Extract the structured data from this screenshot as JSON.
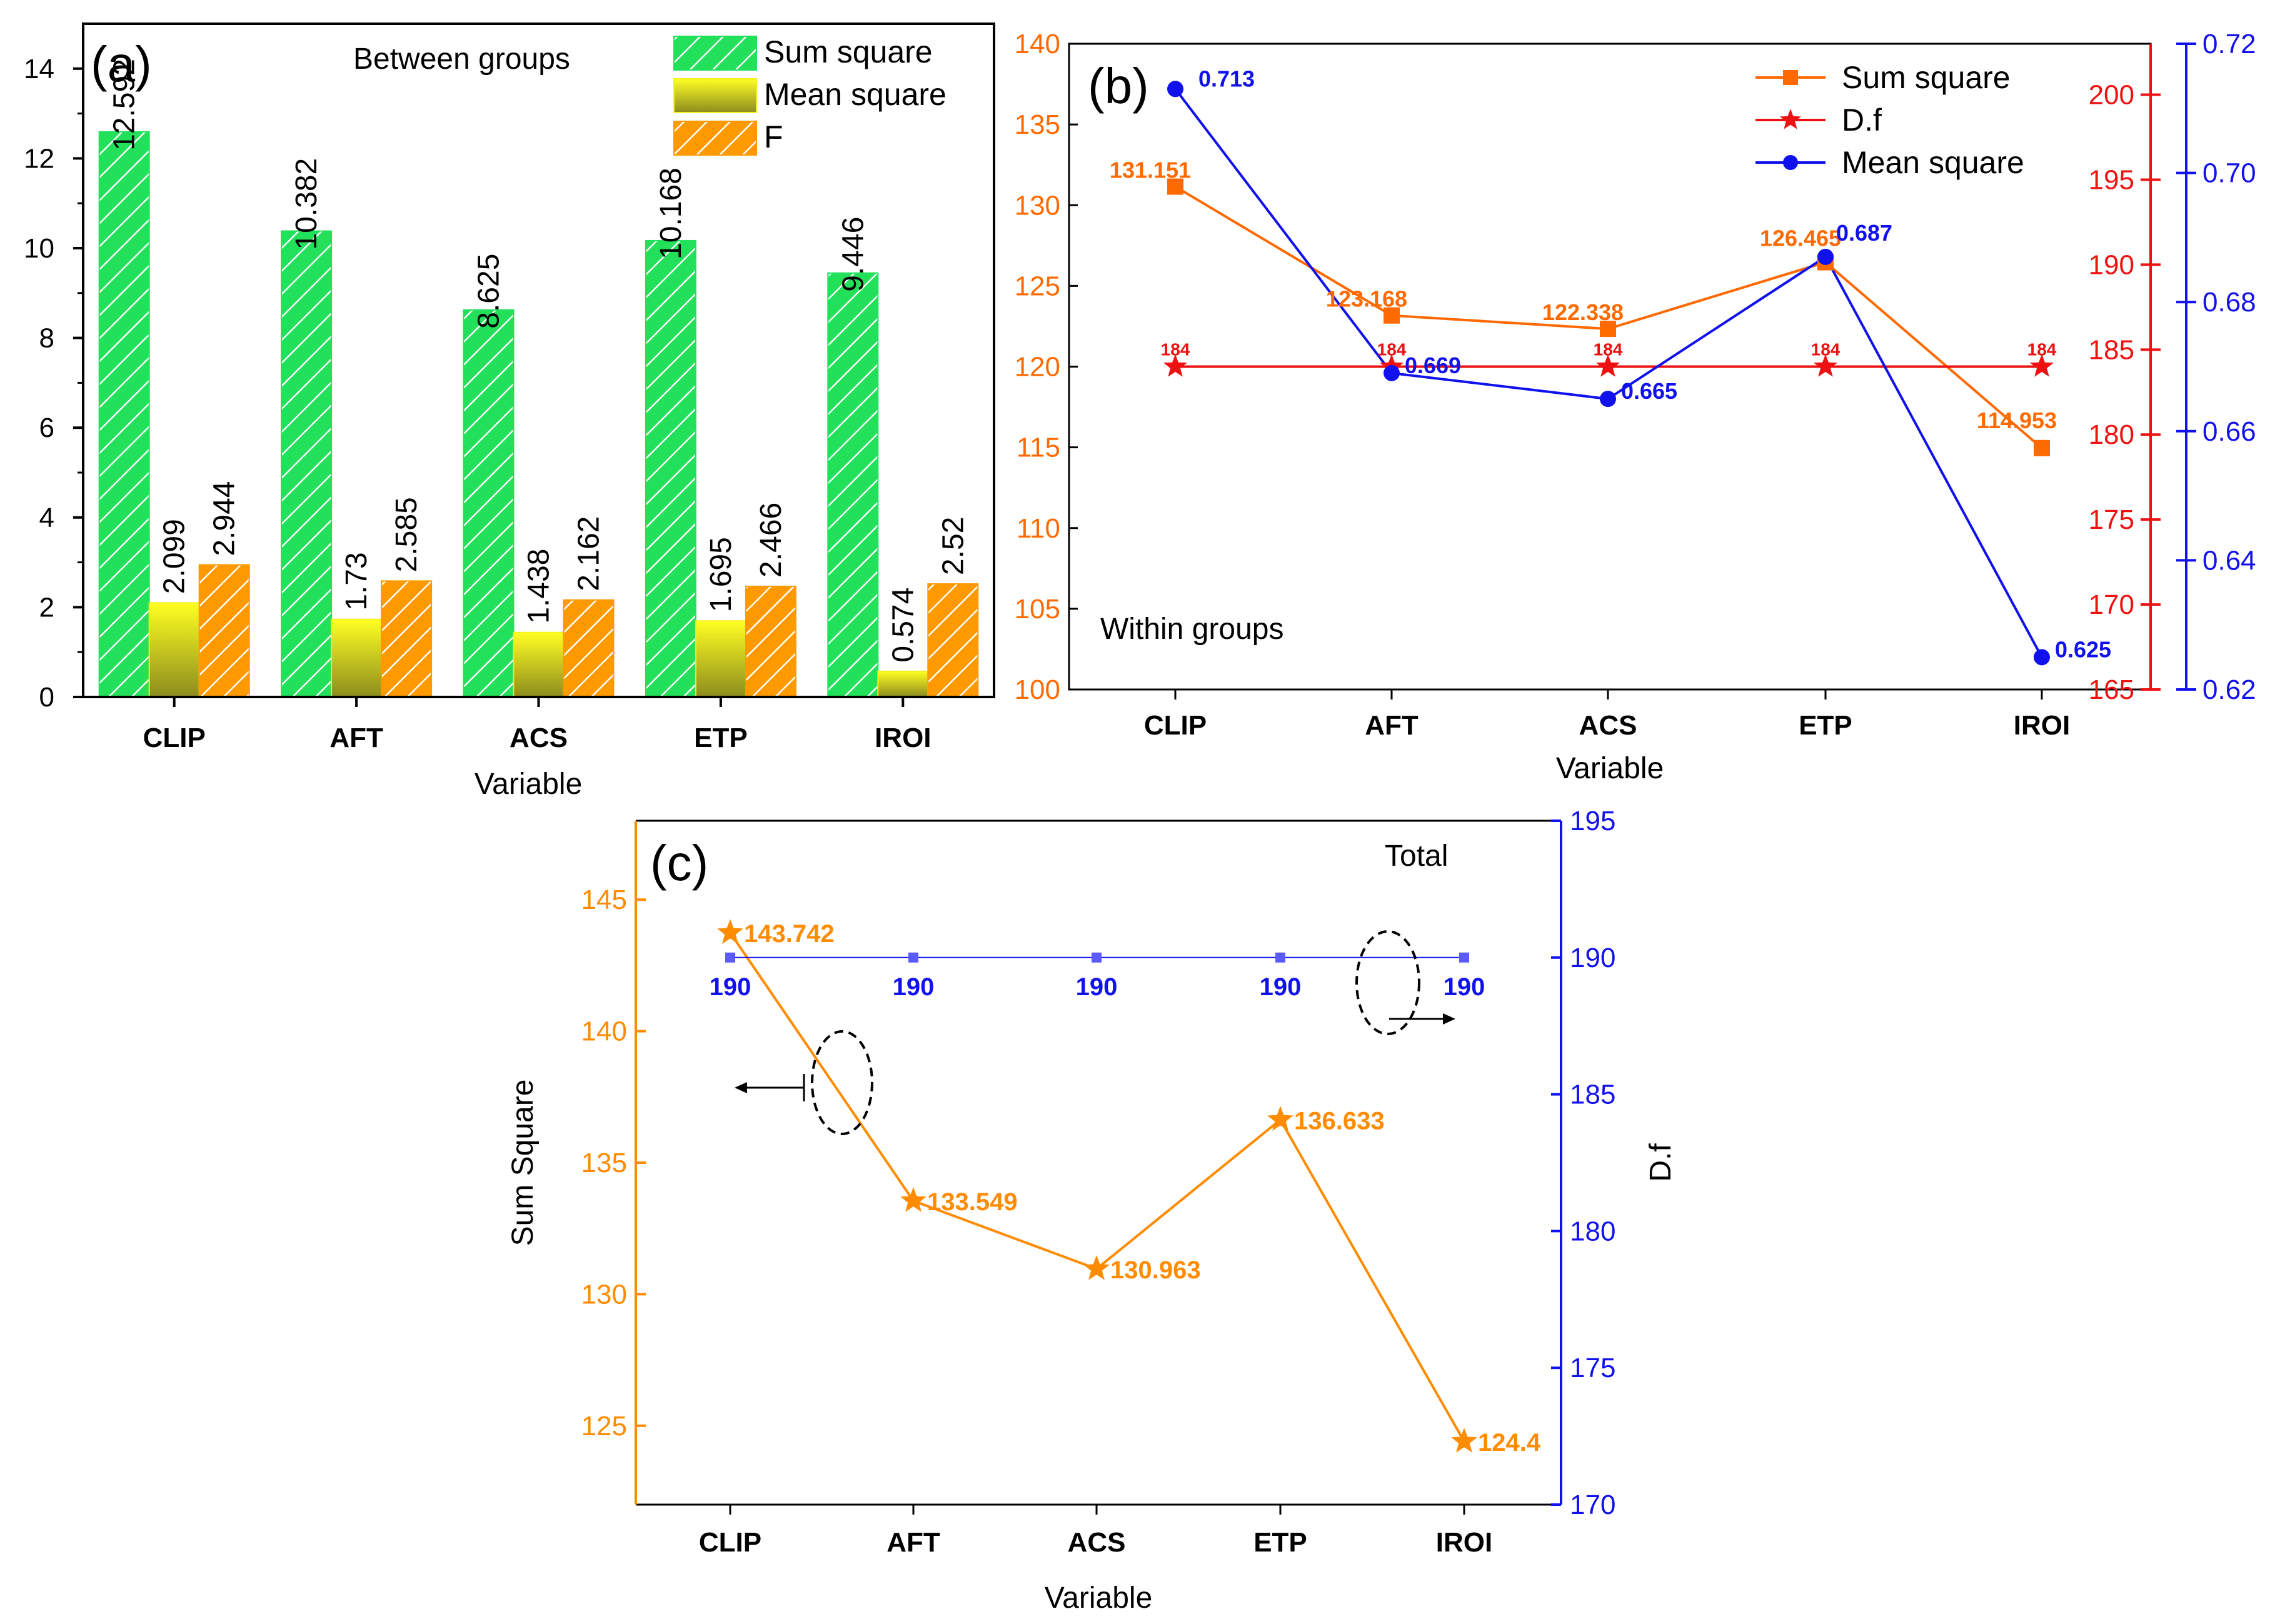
{
  "chart_data": [
    {
      "panel": "(a)",
      "type": "bar",
      "annotation": "Between groups",
      "xlabel": "Variable",
      "ylabel": "",
      "ylim": [
        0,
        15
      ],
      "yticks": [
        0,
        2,
        4,
        6,
        8,
        10,
        12,
        14
      ],
      "categories": [
        "CLIP",
        "AFT",
        "ACS",
        "ETP",
        "IROI"
      ],
      "legend_position": "top-right",
      "series": [
        {
          "name": "Sum square",
          "values": [
            12.592,
            10.382,
            8.625,
            10.168,
            9.446
          ],
          "labels": [
            "12.592",
            "10.382",
            "8.625",
            "10.168",
            "9.446"
          ],
          "color": "#22e05a"
        },
        {
          "name": "Mean square",
          "values": [
            2.099,
            1.73,
            1.438,
            1.695,
            0.574
          ],
          "labels": [
            "2.099",
            "1.73",
            "1.438",
            "1.695",
            "0.574"
          ],
          "color": "#f2f222"
        },
        {
          "name": "F",
          "values": [
            2.944,
            2.585,
            2.162,
            2.466,
            2.52
          ],
          "labels": [
            "2.944",
            "2.585",
            "2.162",
            "2.466",
            "2.52"
          ],
          "color": "#ff9900"
        }
      ]
    },
    {
      "panel": "(b)",
      "type": "line",
      "annotation": "Within groups",
      "xlabel": "Variable",
      "categories": [
        "CLIP",
        "AFT",
        "ACS",
        "ETP",
        "IROI"
      ],
      "legend_position": "top-right",
      "axes": {
        "left": {
          "ylim": [
            100,
            140
          ],
          "ticks": [
            100,
            105,
            110,
            115,
            120,
            125,
            130,
            135,
            140
          ],
          "color": "#ff6a00"
        },
        "right1": {
          "ylim": [
            165,
            203
          ],
          "ticks": [
            165,
            170,
            175,
            180,
            185,
            190,
            195,
            200
          ],
          "color": "#ee1111"
        },
        "right2": {
          "ylim": [
            0.62,
            0.72
          ],
          "ticks": [
            "0.62",
            "0.64",
            "0.66",
            "0.68",
            "0.70",
            "0.72"
          ],
          "color": "#1111ee"
        }
      },
      "series": [
        {
          "name": "Sum square",
          "axis": "left",
          "marker": "square",
          "color": "#ff6a00",
          "values": [
            131.151,
            123.168,
            122.338,
            126.465,
            114.953
          ],
          "labels": [
            "131.151",
            "123.168",
            "122.338",
            "126.465",
            "114.953"
          ]
        },
        {
          "name": "D.f",
          "axis": "right1",
          "marker": "star",
          "color": "#ee1111",
          "values": [
            184,
            184,
            184,
            184,
            184
          ],
          "labels": [
            "184",
            "184",
            "184",
            "184",
            "184"
          ]
        },
        {
          "name": "Mean square",
          "axis": "right2",
          "marker": "circle",
          "color": "#1111ee",
          "values": [
            0.713,
            0.669,
            0.665,
            0.687,
            0.625
          ],
          "labels": [
            "0.713",
            "0.669",
            "0.665",
            "0.687",
            "0.625"
          ]
        }
      ]
    },
    {
      "panel": "(c)",
      "type": "line",
      "annotation": "Total",
      "xlabel": "Variable",
      "categories": [
        "CLIP",
        "AFT",
        "ACS",
        "ETP",
        "IROI"
      ],
      "axes": {
        "left": {
          "label": "Sum Square",
          "ylim": [
            122,
            148
          ],
          "ticks": [
            125,
            130,
            135,
            140,
            145
          ],
          "color": "#ff8c00"
        },
        "right": {
          "label": "D.f",
          "ylim": [
            170,
            195
          ],
          "ticks": [
            170,
            175,
            180,
            185,
            190,
            195
          ],
          "color": "#1111ee"
        }
      },
      "series": [
        {
          "name": "Sum Square",
          "axis": "left",
          "marker": "star",
          "color": "#ff8c00",
          "values": [
            143.742,
            133.549,
            130.963,
            136.633,
            124.4
          ],
          "labels": [
            "143.742",
            "133.549",
            "130.963",
            "136.633",
            "124.4"
          ]
        },
        {
          "name": "D.f",
          "axis": "right",
          "marker": "square",
          "color": "#1111ee",
          "values": [
            190,
            190,
            190,
            190,
            190
          ],
          "labels": [
            "190",
            "190",
            "190",
            "190",
            "190"
          ]
        }
      ]
    }
  ]
}
